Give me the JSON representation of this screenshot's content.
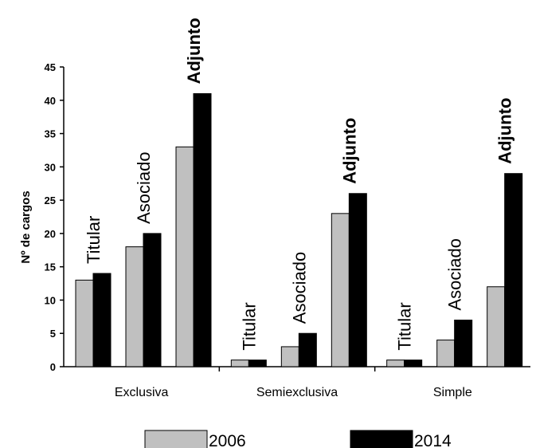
{
  "chart_data": {
    "type": "bar",
    "ylabel": "Nº de cargos",
    "xlabel": "",
    "title": "",
    "ylim": [
      0,
      45
    ],
    "yticks": [
      0,
      5,
      10,
      15,
      20,
      25,
      30,
      35,
      40,
      45
    ],
    "grid": false,
    "legend_position": "bottom",
    "groups": [
      "Exclusiva",
      "Semiexclusiva",
      "Simple"
    ],
    "subcategories": [
      "Titular",
      "Asociado",
      "Adjunto"
    ],
    "series": [
      {
        "name": "2006",
        "color": "#c0c0c0",
        "values": [
          [
            13,
            18,
            33
          ],
          [
            1,
            3,
            23
          ],
          [
            1,
            4,
            12
          ]
        ]
      },
      {
        "name": "2014",
        "color": "#000000",
        "values": [
          [
            14,
            20,
            41
          ],
          [
            1,
            5,
            26
          ],
          [
            1,
            7,
            29
          ]
        ]
      }
    ]
  }
}
